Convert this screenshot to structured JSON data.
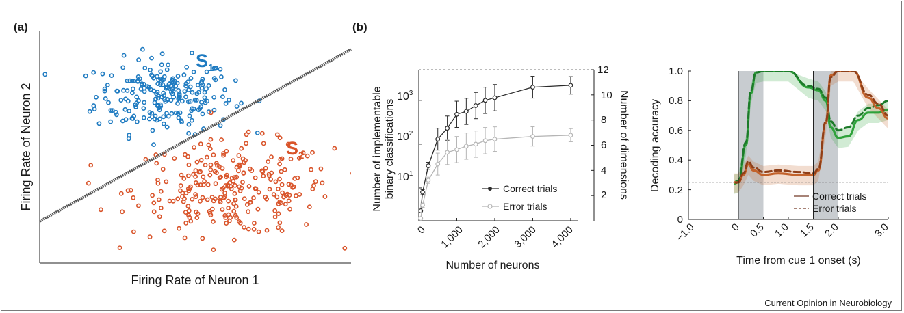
{
  "figure": {
    "credit": "Current Opinion in Neurobiology",
    "colors": {
      "blue": "#1f7bc1",
      "orange": "#d9542a",
      "green": "#2ea23a",
      "brown": "#c2622b",
      "black": "#2b2b2b",
      "gray": "#b5b5b5"
    }
  },
  "panel_a": {
    "label": "(a)",
    "s1_label": "S",
    "s1_sub": "1",
    "s2_label": "S",
    "s2_sub": "2"
  },
  "panel_b": {
    "label": "(b)"
  },
  "chart_data": [
    {
      "type": "scatter",
      "xlabel": "Firing Rate of Neuron 1",
      "ylabel": "Firing Rate of Neuron 2",
      "series": [
        {
          "name": "S1",
          "color": "#1f7bc1",
          "center": [
            0.4,
            0.72
          ],
          "spread": [
            0.11,
            0.08
          ],
          "n": 230
        },
        {
          "name": "S2",
          "color": "#d9542a",
          "center": [
            0.62,
            0.32
          ],
          "spread": [
            0.16,
            0.1
          ],
          "n": 270
        }
      ],
      "decision_boundary": {
        "from": [
          0.0,
          0.18
        ],
        "to": [
          1.0,
          0.92
        ]
      },
      "xlim": [
        0,
        1
      ],
      "ylim": [
        0,
        1
      ]
    },
    {
      "type": "line",
      "xlabel": "Number of neurons",
      "ylabel": "Number of implementable binary classifications",
      "y2label": "Number of dimensions",
      "x_ticks": [
        "0",
        "1,000",
        "2,000",
        "3,000",
        "4,000"
      ],
      "y_ticks": [
        "10",
        "10",
        "10"
      ],
      "y_tick_exponents": [
        "1",
        "2",
        "3"
      ],
      "y2_ticks": [
        "2",
        "4",
        "6",
        "8",
        "10",
        "12"
      ],
      "xlim": [
        0,
        4400
      ],
      "ylim_log10": [
        0.25,
        3.7
      ],
      "y2lim": [
        0,
        12
      ],
      "yscale": "log",
      "legend_position": "bottom-right",
      "series": [
        {
          "name": "Correct trials",
          "color": "#2b2b2b",
          "x": [
            50,
            100,
            250,
            500,
            750,
            1000,
            1250,
            1500,
            1750,
            2000,
            3000,
            4000
          ],
          "y": [
            3,
            8,
            32,
            130,
            230,
            480,
            560,
            760,
            1000,
            1150,
            2000,
            2200
          ],
          "err_log10": [
            0,
            0.06,
            0.08,
            0.25,
            0.28,
            0.3,
            0.3,
            0.3,
            0.3,
            0.3,
            0.25,
            0.2
          ]
        },
        {
          "name": "Error trials",
          "color": "#b5b5b5",
          "x": [
            50,
            100,
            250,
            500,
            750,
            1000,
            1250,
            1500,
            1750,
            2000,
            3000,
            4000
          ],
          "y": [
            2,
            4,
            15,
            35,
            65,
            75,
            90,
            100,
            120,
            130,
            150,
            160
          ],
          "err_log10": [
            0,
            0.05,
            0.07,
            0.25,
            0.28,
            0.3,
            0.3,
            0.3,
            0.3,
            0.28,
            0.22,
            0.15
          ]
        }
      ]
    },
    {
      "type": "line",
      "xlabel": "Time from cue 1 onset (s)",
      "ylabel": "Decoding accuracy",
      "x_ticks": [
        "−1.0",
        "0",
        "0.5",
        "1.0",
        "1.5",
        "2.0",
        "3.0"
      ],
      "y_ticks": [
        "0",
        "0.2",
        "0.4",
        "0.6",
        "0.8",
        "1.0"
      ],
      "xlim": [
        -1.0,
        3.0
      ],
      "ylim": [
        0,
        1.0
      ],
      "shaded_intervals": [
        [
          0,
          0.5
        ],
        [
          1.5,
          2.0
        ]
      ],
      "chance_level": 0.25,
      "legend_position": "bottom-right",
      "series": [
        {
          "name": "Correct trials",
          "style": "solid",
          "color": "#2ea23a",
          "x": [
            -1.0,
            -0.5,
            -0.1,
            0.0,
            0.15,
            0.25,
            0.35,
            0.5,
            1.0,
            1.4,
            1.6,
            1.75,
            1.85,
            2.0,
            2.2,
            2.4,
            2.6,
            2.8,
            3.0
          ],
          "y": [
            0.24,
            0.25,
            0.24,
            0.25,
            0.5,
            0.85,
            0.99,
            1.0,
            1.0,
            0.89,
            0.87,
            0.8,
            0.62,
            0.55,
            0.56,
            0.67,
            0.72,
            0.72,
            0.74
          ]
        },
        {
          "name": "Error trials",
          "style": "dashed",
          "color": "#2ea23a",
          "x": [
            -1.0,
            -0.5,
            -0.1,
            0.0,
            0.15,
            0.25,
            0.35,
            0.5,
            1.0,
            1.4,
            1.6,
            1.75,
            1.85,
            2.0,
            2.2,
            2.4,
            2.6,
            2.8,
            3.0
          ],
          "y": [
            0.25,
            0.26,
            0.25,
            0.26,
            0.52,
            0.87,
            0.99,
            1.0,
            1.0,
            0.9,
            0.88,
            0.82,
            0.66,
            0.6,
            0.62,
            0.7,
            0.75,
            0.77,
            0.8
          ]
        },
        {
          "name": "Correct trials",
          "style": "solid",
          "color": "#c2622b",
          "x": [
            -1.0,
            -0.5,
            -0.1,
            0.0,
            0.1,
            0.2,
            0.3,
            0.5,
            0.8,
            1.2,
            1.5,
            1.6,
            1.75,
            1.85,
            2.0,
            2.3,
            2.6,
            2.8,
            3.0
          ],
          "y": [
            0.25,
            0.24,
            0.25,
            0.25,
            0.3,
            0.37,
            0.33,
            0.3,
            0.31,
            0.3,
            0.3,
            0.33,
            0.65,
            0.97,
            1.0,
            1.0,
            0.82,
            0.75,
            0.68
          ]
        },
        {
          "name": "Error trials",
          "style": "dashed",
          "color": "#c2622b",
          "x": [
            -1.0,
            -0.5,
            -0.1,
            0.0,
            0.1,
            0.2,
            0.3,
            0.5,
            0.8,
            1.2,
            1.5,
            1.6,
            1.75,
            1.85,
            2.0,
            2.3,
            2.6,
            2.8,
            3.0
          ],
          "y": [
            0.26,
            0.25,
            0.24,
            0.25,
            0.31,
            0.39,
            0.35,
            0.32,
            0.33,
            0.32,
            0.31,
            0.34,
            0.66,
            0.96,
            1.0,
            1.0,
            0.84,
            0.78,
            0.7
          ]
        }
      ]
    }
  ]
}
